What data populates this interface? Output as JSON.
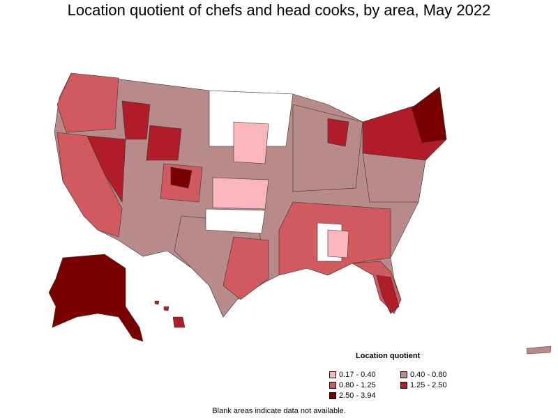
{
  "title": "Location quotient of chefs and head cooks, by area, May 2022",
  "legend": {
    "title": "Location quotient",
    "items": [
      {
        "label": "0.17 - 0.40",
        "color": "#f9b6bd"
      },
      {
        "label": "0.40 - 0.80",
        "color": "#b98a8a"
      },
      {
        "label": "0.80 - 1.25",
        "color": "#d05a60"
      },
      {
        "label": "1.25 - 2.50",
        "color": "#b01c28"
      },
      {
        "label": "2.50 - 3.94",
        "color": "#7a0000"
      }
    ]
  },
  "footnote": "Blank areas indicate data not available.",
  "colors": {
    "blank": "#ffffff",
    "border": "#333333"
  }
}
